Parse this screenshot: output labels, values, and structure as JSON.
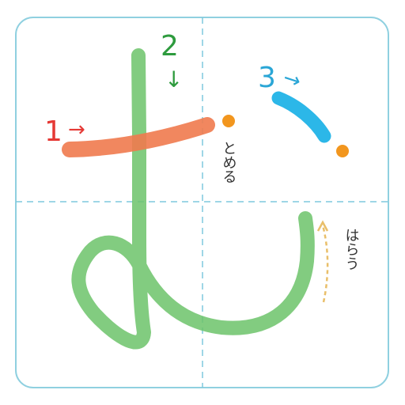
{
  "diagram": {
    "character": "む",
    "strokes": [
      {
        "order": "1",
        "arrow": "→",
        "color": "#f07a4e",
        "label_color": "#e53935"
      },
      {
        "order": "2",
        "arrow": "↓",
        "color": "#6cc36a",
        "label_color": "#2e9b3e"
      },
      {
        "order": "3",
        "arrow": "→",
        "color": "#2cb7e8",
        "label_color": "#2aa6d6"
      }
    ],
    "notes": {
      "tome": "とめる",
      "harau": "はらう"
    },
    "colors": {
      "frame": "#8fd0e0",
      "guide": "#7ec8dd",
      "dot": "#f2961e",
      "harau_arrow": "#e9bf6a"
    }
  }
}
